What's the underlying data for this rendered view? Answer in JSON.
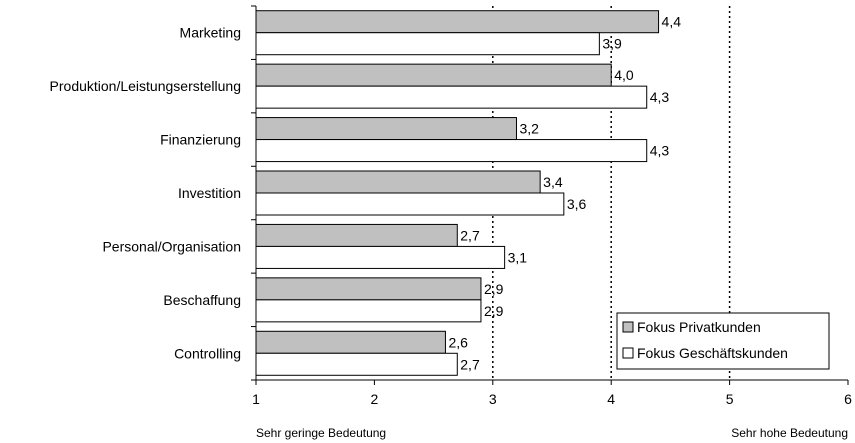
{
  "chart_data": {
    "type": "bar",
    "orientation": "horizontal",
    "title": "",
    "xlabel": "",
    "ylabel": "",
    "categories": [
      "Marketing",
      "Produktion/Leistungserstellung",
      "Finanzierung",
      "Investition",
      "Personal/Organisation",
      "Beschaffung",
      "Controlling"
    ],
    "series": [
      {
        "name": "Fokus Privatkunden",
        "color": "#c0c0c0",
        "values": [
          4.4,
          4.0,
          3.2,
          3.4,
          2.7,
          2.9,
          2.6
        ],
        "labels": [
          "4,4",
          "4,0",
          "3,2",
          "3,4",
          "2,7",
          "2,9",
          "2,6"
        ]
      },
      {
        "name": "Fokus Geschäftskunden",
        "color": "#ffffff",
        "values": [
          3.9,
          4.3,
          4.3,
          3.6,
          3.1,
          2.9,
          2.7
        ],
        "labels": [
          "3,9",
          "4,3",
          "4,3",
          "3,6",
          "3,1",
          "2,9",
          "2,7"
        ]
      }
    ],
    "xlim": [
      1,
      6
    ],
    "xticks": [
      "1",
      "2",
      "3",
      "4",
      "5",
      "6"
    ],
    "gridlines": "dotted vertical at 3, 4, 5",
    "legend_position": "bottom-right",
    "scale_notes": {
      "low": "Sehr geringe Bedeutung",
      "high": "Sehr hohe Bedeutung"
    }
  }
}
